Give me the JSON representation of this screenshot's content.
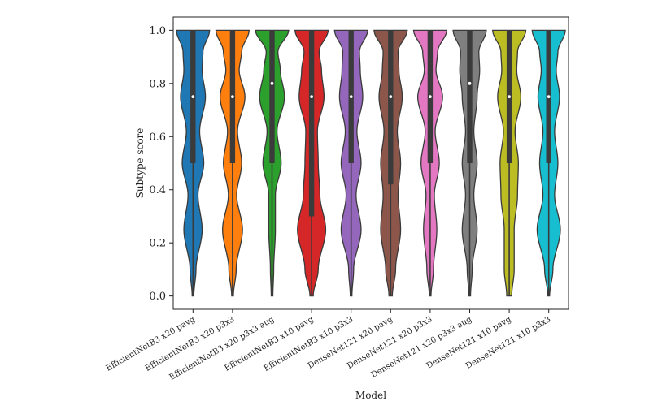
{
  "chart_data": {
    "type": "violin",
    "xlabel": "Model",
    "ylabel": "Subtype score",
    "ylim": [
      -0.05,
      1.05
    ],
    "yticks": [
      0.0,
      0.2,
      0.4,
      0.6,
      0.8,
      1.0
    ],
    "ytick_labels": [
      "0.0",
      "0.2",
      "0.4",
      "0.6",
      "0.8",
      "1.0"
    ],
    "categories": [
      "EfficientNetB3 x20 pavg",
      "EfficientNetB3 x20 p3x3",
      "EfficientNetB3 x20 p3x3 aug",
      "EfficientNetB3 x10 pavg",
      "EfficientNetB3 x10 p3x3",
      "DenseNet121 x20 pavg",
      "DenseNet121 x20 p3x3",
      "DenseNet121 x20 p3x3 aug",
      "DenseNet121 x10 pavg",
      "DenseNet121 x10 p3x3"
    ],
    "colors": [
      "#1f77b4",
      "#ff7f0e",
      "#2ca02c",
      "#d62728",
      "#9467bd",
      "#8c564b",
      "#e377c2",
      "#7f7f7f",
      "#bcbd22",
      "#17becf"
    ],
    "medians": [
      0.75,
      0.75,
      0.8,
      0.75,
      0.75,
      0.75,
      0.75,
      0.8,
      0.75,
      0.75
    ],
    "q1": [
      0.5,
      0.5,
      0.5,
      0.3,
      0.5,
      0.42,
      0.5,
      0.5,
      0.5,
      0.5
    ],
    "q3": [
      1.0,
      1.0,
      1.0,
      1.0,
      1.0,
      1.0,
      1.0,
      1.0,
      1.0,
      1.0
    ],
    "whisker_low": [
      0.0,
      0.0,
      0.0,
      0.0,
      0.0,
      0.0,
      0.0,
      0.0,
      0.0,
      0.0
    ],
    "whisker_high": [
      1.0,
      1.0,
      1.0,
      1.0,
      1.0,
      1.0,
      1.0,
      1.0,
      1.0,
      1.0
    ],
    "density_profiles": [
      [
        [
          0.0,
          0.05
        ],
        [
          0.1,
          0.18
        ],
        [
          0.25,
          0.55
        ],
        [
          0.38,
          0.3
        ],
        [
          0.5,
          0.65
        ],
        [
          0.62,
          0.4
        ],
        [
          0.75,
          0.75
        ],
        [
          0.85,
          0.55
        ],
        [
          0.92,
          0.6
        ],
        [
          1.0,
          1.0
        ]
      ],
      [
        [
          0.0,
          0.05
        ],
        [
          0.1,
          0.22
        ],
        [
          0.25,
          0.6
        ],
        [
          0.38,
          0.25
        ],
        [
          0.5,
          0.55
        ],
        [
          0.62,
          0.3
        ],
        [
          0.75,
          0.75
        ],
        [
          0.85,
          0.4
        ],
        [
          0.92,
          0.55
        ],
        [
          1.0,
          1.0
        ]
      ],
      [
        [
          0.0,
          0.05
        ],
        [
          0.1,
          0.1
        ],
        [
          0.25,
          0.2
        ],
        [
          0.38,
          0.2
        ],
        [
          0.5,
          0.55
        ],
        [
          0.62,
          0.3
        ],
        [
          0.75,
          0.75
        ],
        [
          0.85,
          0.5
        ],
        [
          0.92,
          0.35
        ],
        [
          1.0,
          1.0
        ]
      ],
      [
        [
          0.0,
          0.1
        ],
        [
          0.1,
          0.4
        ],
        [
          0.25,
          0.85
        ],
        [
          0.38,
          0.5
        ],
        [
          0.5,
          0.4
        ],
        [
          0.62,
          0.35
        ],
        [
          0.75,
          0.75
        ],
        [
          0.85,
          0.6
        ],
        [
          0.92,
          0.45
        ],
        [
          1.0,
          1.0
        ]
      ],
      [
        [
          0.0,
          0.05
        ],
        [
          0.1,
          0.15
        ],
        [
          0.25,
          0.6
        ],
        [
          0.38,
          0.3
        ],
        [
          0.5,
          0.6
        ],
        [
          0.62,
          0.35
        ],
        [
          0.75,
          0.7
        ],
        [
          0.85,
          0.55
        ],
        [
          0.92,
          0.5
        ],
        [
          1.0,
          1.0
        ]
      ],
      [
        [
          0.0,
          0.1
        ],
        [
          0.1,
          0.3
        ],
        [
          0.25,
          0.6
        ],
        [
          0.38,
          0.45
        ],
        [
          0.5,
          0.6
        ],
        [
          0.62,
          0.4
        ],
        [
          0.75,
          0.7
        ],
        [
          0.85,
          0.5
        ],
        [
          0.92,
          0.45
        ],
        [
          1.0,
          1.0
        ]
      ],
      [
        [
          0.0,
          0.05
        ],
        [
          0.1,
          0.2
        ],
        [
          0.25,
          0.4
        ],
        [
          0.38,
          0.25
        ],
        [
          0.5,
          0.55
        ],
        [
          0.62,
          0.3
        ],
        [
          0.75,
          0.75
        ],
        [
          0.85,
          0.35
        ],
        [
          0.92,
          0.45
        ],
        [
          1.0,
          1.0
        ]
      ],
      [
        [
          0.0,
          0.05
        ],
        [
          0.1,
          0.15
        ],
        [
          0.25,
          0.45
        ],
        [
          0.38,
          0.25
        ],
        [
          0.5,
          0.45
        ],
        [
          0.62,
          0.25
        ],
        [
          0.75,
          0.45
        ],
        [
          0.85,
          0.6
        ],
        [
          0.92,
          0.55
        ],
        [
          1.0,
          1.0
        ]
      ],
      [
        [
          0.0,
          0.15
        ],
        [
          0.1,
          0.3
        ],
        [
          0.25,
          0.3
        ],
        [
          0.38,
          0.5
        ],
        [
          0.5,
          0.55
        ],
        [
          0.62,
          0.35
        ],
        [
          0.75,
          0.7
        ],
        [
          0.85,
          0.45
        ],
        [
          0.92,
          0.5
        ],
        [
          1.0,
          1.0
        ]
      ],
      [
        [
          0.0,
          0.05
        ],
        [
          0.1,
          0.25
        ],
        [
          0.25,
          0.7
        ],
        [
          0.38,
          0.35
        ],
        [
          0.5,
          0.55
        ],
        [
          0.62,
          0.35
        ],
        [
          0.75,
          0.65
        ],
        [
          0.85,
          0.45
        ],
        [
          0.92,
          0.55
        ],
        [
          1.0,
          1.0
        ]
      ]
    ]
  }
}
